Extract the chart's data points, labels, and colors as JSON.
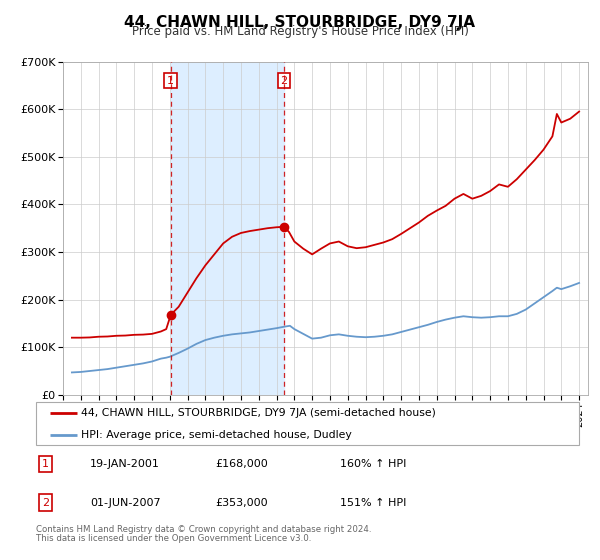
{
  "title": "44, CHAWN HILL, STOURBRIDGE, DY9 7JA",
  "subtitle": "Price paid vs. HM Land Registry's House Price Index (HPI)",
  "legend_line1": "44, CHAWN HILL, STOURBRIDGE, DY9 7JA (semi-detached house)",
  "legend_line2": "HPI: Average price, semi-detached house, Dudley",
  "footer_line1": "Contains HM Land Registry data © Crown copyright and database right 2024.",
  "footer_line2": "This data is licensed under the Open Government Licence v3.0.",
  "price_color": "#cc0000",
  "hpi_color": "#6699cc",
  "shading_color": "#ddeeff",
  "marker_color": "#cc0000",
  "vline_color": "#cc0000",
  "annotation_box_color": "#cc0000",
  "ylim": [
    0,
    700000
  ],
  "yticks": [
    0,
    100000,
    200000,
    300000,
    400000,
    500000,
    600000,
    700000
  ],
  "ytick_labels": [
    "£0",
    "£100K",
    "£200K",
    "£300K",
    "£400K",
    "£500K",
    "£600K",
    "£700K"
  ],
  "sale1_x": 2001.055,
  "sale1_price": 168000,
  "sale2_x": 2007.42,
  "sale2_price": 353000,
  "table_row1": [
    "1",
    "19-JAN-2001",
    "£168,000",
    "160% ↑ HPI"
  ],
  "table_row2": [
    "2",
    "01-JUN-2007",
    "£353,000",
    "151% ↑ HPI"
  ],
  "price_data": [
    [
      1995.5,
      120000
    ],
    [
      1996.0,
      120000
    ],
    [
      1996.5,
      120500
    ],
    [
      1997.0,
      122000
    ],
    [
      1997.5,
      122500
    ],
    [
      1998.0,
      124000
    ],
    [
      1998.5,
      124500
    ],
    [
      1999.0,
      126000
    ],
    [
      1999.5,
      126500
    ],
    [
      2000.0,
      128000
    ],
    [
      2000.5,
      133000
    ],
    [
      2000.8,
      138000
    ],
    [
      2001.055,
      168000
    ],
    [
      2001.5,
      185000
    ],
    [
      2002.0,
      215000
    ],
    [
      2002.5,
      245000
    ],
    [
      2003.0,
      272000
    ],
    [
      2003.5,
      295000
    ],
    [
      2004.0,
      318000
    ],
    [
      2004.5,
      332000
    ],
    [
      2005.0,
      340000
    ],
    [
      2005.5,
      344000
    ],
    [
      2006.0,
      347000
    ],
    [
      2006.5,
      350000
    ],
    [
      2007.0,
      352000
    ],
    [
      2007.42,
      353000
    ],
    [
      2007.7,
      342000
    ],
    [
      2008.0,
      322000
    ],
    [
      2008.5,
      307000
    ],
    [
      2009.0,
      295000
    ],
    [
      2009.5,
      307000
    ],
    [
      2010.0,
      318000
    ],
    [
      2010.5,
      322000
    ],
    [
      2011.0,
      312000
    ],
    [
      2011.5,
      308000
    ],
    [
      2012.0,
      310000
    ],
    [
      2012.5,
      315000
    ],
    [
      2013.0,
      320000
    ],
    [
      2013.5,
      327000
    ],
    [
      2014.0,
      338000
    ],
    [
      2014.5,
      350000
    ],
    [
      2015.0,
      362000
    ],
    [
      2015.5,
      376000
    ],
    [
      2016.0,
      387000
    ],
    [
      2016.5,
      397000
    ],
    [
      2017.0,
      412000
    ],
    [
      2017.5,
      422000
    ],
    [
      2018.0,
      412000
    ],
    [
      2018.5,
      418000
    ],
    [
      2019.0,
      428000
    ],
    [
      2019.5,
      442000
    ],
    [
      2020.0,
      437000
    ],
    [
      2020.5,
      453000
    ],
    [
      2021.0,
      473000
    ],
    [
      2021.5,
      493000
    ],
    [
      2022.0,
      515000
    ],
    [
      2022.5,
      543000
    ],
    [
      2022.75,
      590000
    ],
    [
      2023.0,
      572000
    ],
    [
      2023.5,
      580000
    ],
    [
      2024.0,
      595000
    ]
  ],
  "hpi_data": [
    [
      1995.5,
      47000
    ],
    [
      1996.0,
      48000
    ],
    [
      1996.5,
      50000
    ],
    [
      1997.0,
      52000
    ],
    [
      1997.5,
      54000
    ],
    [
      1998.0,
      57000
    ],
    [
      1998.5,
      60000
    ],
    [
      1999.0,
      63000
    ],
    [
      1999.5,
      66000
    ],
    [
      2000.0,
      70000
    ],
    [
      2000.5,
      76000
    ],
    [
      2000.8,
      78000
    ],
    [
      2001.0,
      80000
    ],
    [
      2001.5,
      88000
    ],
    [
      2002.0,
      97000
    ],
    [
      2002.5,
      107000
    ],
    [
      2003.0,
      115000
    ],
    [
      2003.5,
      120000
    ],
    [
      2004.0,
      124000
    ],
    [
      2004.5,
      127000
    ],
    [
      2005.0,
      129000
    ],
    [
      2005.5,
      131000
    ],
    [
      2006.0,
      134000
    ],
    [
      2006.5,
      137000
    ],
    [
      2007.0,
      140000
    ],
    [
      2007.42,
      143000
    ],
    [
      2007.75,
      145000
    ],
    [
      2008.0,
      138000
    ],
    [
      2008.5,
      128000
    ],
    [
      2009.0,
      118000
    ],
    [
      2009.5,
      120000
    ],
    [
      2010.0,
      125000
    ],
    [
      2010.5,
      127000
    ],
    [
      2011.0,
      124000
    ],
    [
      2011.5,
      122000
    ],
    [
      2012.0,
      121000
    ],
    [
      2012.5,
      122000
    ],
    [
      2013.0,
      124000
    ],
    [
      2013.5,
      127000
    ],
    [
      2014.0,
      132000
    ],
    [
      2014.5,
      137000
    ],
    [
      2015.0,
      142000
    ],
    [
      2015.5,
      147000
    ],
    [
      2016.0,
      153000
    ],
    [
      2016.5,
      158000
    ],
    [
      2017.0,
      162000
    ],
    [
      2017.5,
      165000
    ],
    [
      2018.0,
      163000
    ],
    [
      2018.5,
      162000
    ],
    [
      2019.0,
      163000
    ],
    [
      2019.5,
      165000
    ],
    [
      2020.0,
      165000
    ],
    [
      2020.5,
      170000
    ],
    [
      2021.0,
      179000
    ],
    [
      2021.5,
      192000
    ],
    [
      2022.0,
      205000
    ],
    [
      2022.5,
      218000
    ],
    [
      2022.75,
      225000
    ],
    [
      2023.0,
      222000
    ],
    [
      2023.5,
      228000
    ],
    [
      2024.0,
      235000
    ]
  ],
  "xmin": 1995.0,
  "xmax": 2024.5
}
